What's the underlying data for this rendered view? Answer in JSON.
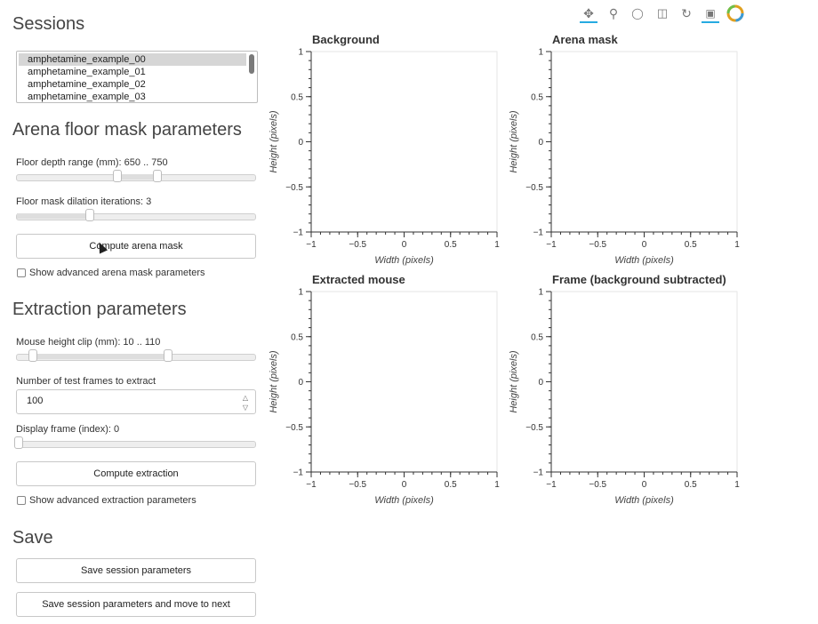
{
  "sessions": {
    "heading": "Sessions",
    "items": [
      "amphetamine_example_00",
      "amphetamine_example_01",
      "amphetamine_example_02",
      "amphetamine_example_03"
    ],
    "selected_index": 0
  },
  "arena": {
    "heading": "Arena floor mask parameters",
    "floor_depth_label": "Floor depth range (mm): 650 .. 750",
    "dilation_label": "Floor mask dilation iterations: 3",
    "compute_button": "Compute arena mask",
    "advanced_label": "Show advanced arena mask parameters"
  },
  "extraction": {
    "heading": "Extraction parameters",
    "height_clip_label": "Mouse height clip (mm): 10 .. 110",
    "num_frames_label": "Number of test frames to extract",
    "num_frames_value": "100",
    "display_frame_label": "Display frame (index): 0",
    "compute_button": "Compute extraction",
    "advanced_label": "Show advanced extraction parameters"
  },
  "save": {
    "heading": "Save",
    "save_button": "Save session parameters",
    "save_next_button": "Save session parameters and move to next"
  },
  "toolbar": {
    "icons": [
      "pan-icon",
      "box-zoom-icon",
      "wheel-zoom-icon",
      "save-icon",
      "reset-icon",
      "hover-icon",
      "bokeh-logo-icon"
    ],
    "accent_color": "#26aae1"
  },
  "plots": [
    {
      "title": "Background",
      "xlabel": "Width (pixels)",
      "ylabel": "Height (pixels)"
    },
    {
      "title": "Arena mask",
      "xlabel": "Width (pixels)",
      "ylabel": "Height (pixels)"
    },
    {
      "title": "Extracted mouse",
      "xlabel": "Width (pixels)",
      "ylabel": "Height (pixels)"
    },
    {
      "title": "Frame (background subtracted)",
      "xlabel": "Width (pixels)",
      "ylabel": "Height (pixels)"
    }
  ],
  "axis": {
    "x_ticks": [
      "−1",
      "−0.5",
      "0",
      "0.5",
      "1"
    ],
    "y_ticks": [
      "1",
      "0.5",
      "0",
      "−0.5",
      "−1"
    ]
  }
}
